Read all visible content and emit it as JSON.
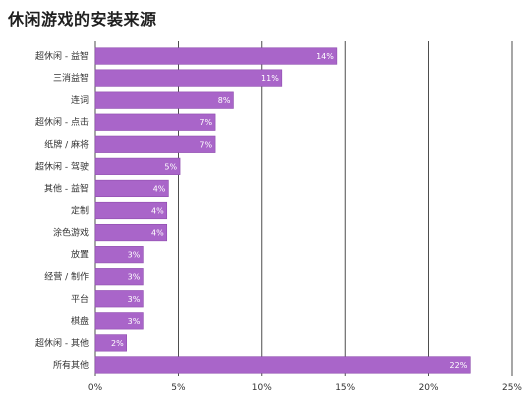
{
  "chart_data": {
    "type": "bar",
    "orientation": "horizontal",
    "title": "休闲游戏的安装来源",
    "categories": [
      "超休闲 - 益智",
      "三消益智",
      "连词",
      "超休闲 - 点击",
      "纸牌 / 麻将",
      "超休闲 - 驾驶",
      "其他 - 益智",
      "定制",
      "涂色游戏",
      "放置",
      "经营 / 制作",
      "平台",
      "棋盘",
      "超休闲 - 其他",
      "所有其他"
    ],
    "values": [
      14.5,
      11.2,
      8.3,
      7.2,
      7.2,
      5.1,
      4.4,
      4.3,
      4.3,
      2.9,
      2.9,
      2.9,
      2.9,
      1.9,
      22.5
    ],
    "value_labels": [
      "14%",
      "11%",
      "8%",
      "7%",
      "7%",
      "5%",
      "4%",
      "4%",
      "4%",
      "3%",
      "3%",
      "3%",
      "3%",
      "2%",
      "22%"
    ],
    "xlim": [
      0,
      25
    ],
    "xticks": [
      0,
      5,
      10,
      15,
      20,
      25
    ],
    "xtick_labels": [
      "0%",
      "5%",
      "10%",
      "15%",
      "20%",
      "25%"
    ],
    "xlabel": "",
    "ylabel": "",
    "grid": true,
    "bar_color": "#a965c9",
    "bar_edge_color": "#8e4cae",
    "grid_color": "#222222"
  }
}
